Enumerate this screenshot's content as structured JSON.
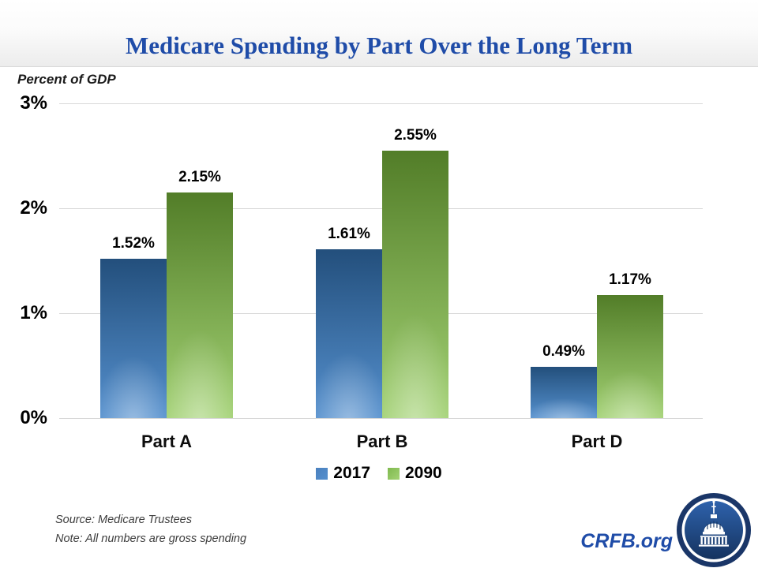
{
  "slide": {
    "title": "Medicare Spending by Part Over the Long Term",
    "axis_title": "Percent of GDP",
    "source_line": "Source: Medicare Trustees",
    "note_line": "Note: All numbers are gross spending",
    "brand": "CRFB.org",
    "title_color": "#1F4CA8",
    "brand_color": "#1F4CA8"
  },
  "chart_data": {
    "type": "bar",
    "title": "Medicare Spending by Part Over the Long Term",
    "ylabel": "Percent of GDP",
    "categories": [
      "Part A",
      "Part B",
      "Part D"
    ],
    "series": [
      {
        "name": "2017",
        "values": [
          1.52,
          1.61,
          0.49
        ],
        "color_top": "#234F7C",
        "color_bottom": "#5590CE",
        "legend_color": "#4A80BE"
      },
      {
        "name": "2090",
        "values": [
          2.15,
          2.55,
          1.17
        ],
        "color_top": "#527D28",
        "color_bottom": "#A3D274",
        "legend_color": "#7FB94E"
      }
    ],
    "data_labels": [
      [
        "1.52%",
        "1.61%",
        "0.49%"
      ],
      [
        "2.15%",
        "2.55%",
        "1.17%"
      ]
    ],
    "y_ticks": [
      "0%",
      "1%",
      "2%",
      "3%"
    ],
    "ylim": [
      0,
      3
    ],
    "grid": true,
    "gridline_color": "#d8d8d8",
    "legend_position": "bottom"
  }
}
